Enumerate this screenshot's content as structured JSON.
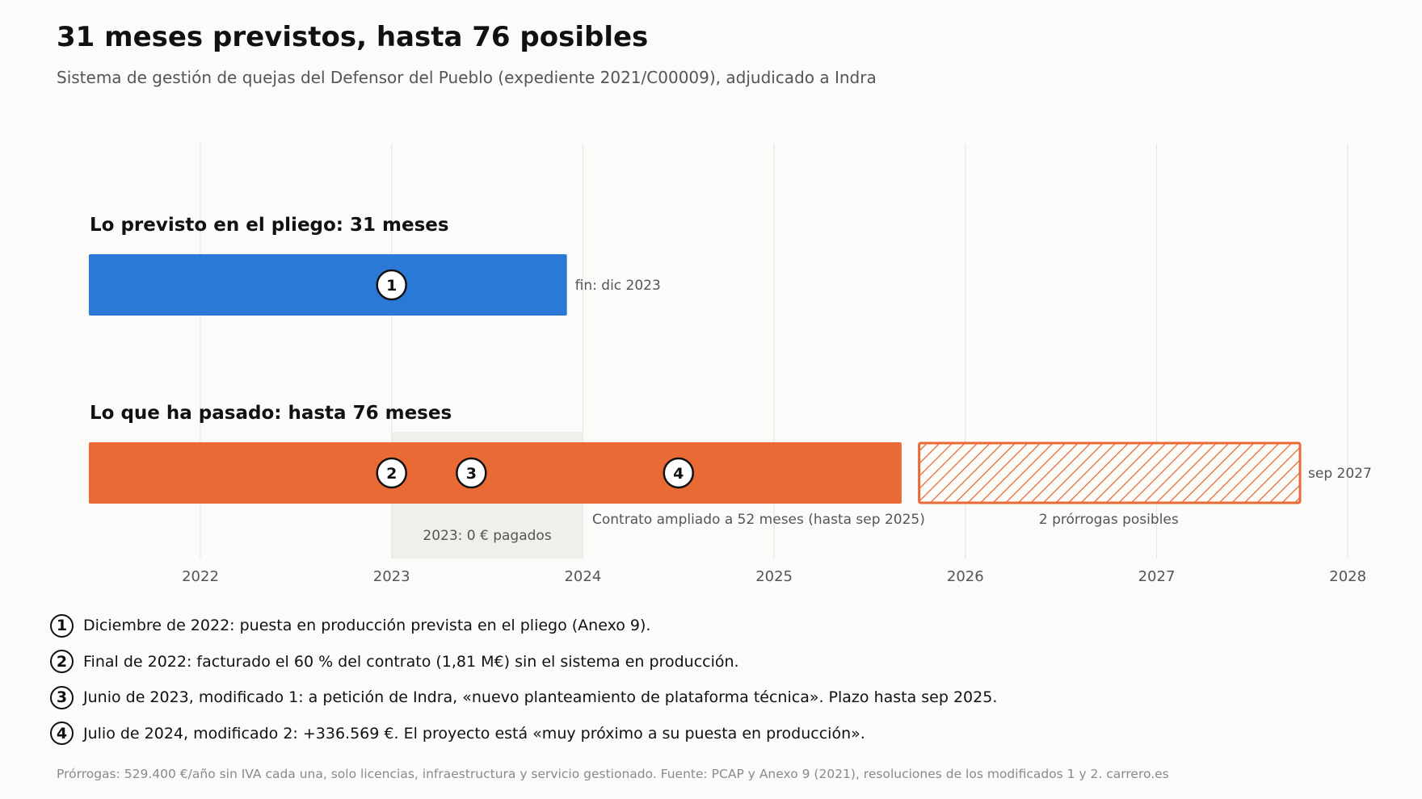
{
  "title": "31 meses previstos, hasta 76 posibles",
  "subtitle": "Sistema de gestión de quejas del Defensor del Pueblo (expediente 2021/C00009), adjudicado a Indra",
  "colors": {
    "planned": "#2b79d6",
    "actual": "#ea6a36",
    "shade": "#f0efec",
    "grid": "#e8e6df",
    "marker_border": "#111111",
    "marker_fill": "#ffffff"
  },
  "chart_data": {
    "type": "timeline",
    "x_ticks": [
      "2022",
      "2023",
      "2024",
      "2025",
      "2026",
      "2027",
      "2028"
    ],
    "xlim": [
      "2021-06",
      "2028-03"
    ],
    "grid": true,
    "rows": [
      {
        "label": "Lo previsto en el pliego: 31 meses",
        "segments": [
          {
            "start": "2021-06",
            "end": "2023-12",
            "style": "solid",
            "color": "#2b79d6"
          }
        ],
        "end_label": "fin: dic 2023",
        "markers": [
          {
            "id": "1",
            "date": "2023-01"
          }
        ]
      },
      {
        "label": "Lo que ha pasado: hasta 76 meses",
        "segments": [
          {
            "start": "2021-06",
            "end": "2025-09",
            "style": "solid",
            "color": "#ea6a36",
            "label": "Contrato ampliado a 52 meses (hasta sep 2025)"
          },
          {
            "start": "2025-10",
            "end": "2027-09",
            "style": "hatched",
            "color": "#ea6a36",
            "label": "2 prórrogas posibles"
          }
        ],
        "end_label": "sep 2027",
        "markers": [
          {
            "id": "2",
            "date": "2023-01"
          },
          {
            "id": "3",
            "date": "2023-06"
          },
          {
            "id": "4",
            "date": "2024-07"
          }
        ]
      }
    ],
    "shaded_period": {
      "start": "2023-01",
      "end": "2024-01",
      "label": "2023: 0 € pagados"
    }
  },
  "notes": [
    {
      "marker": "1",
      "text": "Diciembre de 2022: puesta en producción prevista en el pliego (Anexo 9)."
    },
    {
      "marker": "2",
      "text": "Final de 2022: facturado el 60 % del contrato (1,81 M€) sin el sistema en producción."
    },
    {
      "marker": "3",
      "text": "Junio de 2023, modificado 1: a petición de Indra, «nuevo planteamiento de plataforma técnica». Plazo hasta sep 2025."
    },
    {
      "marker": "4",
      "text": "Julio de 2024, modificado 2: +336.569 €. El proyecto está «muy próximo a su puesta en producción»."
    }
  ],
  "footer": "Prórrogas: 529.400 €/año sin IVA cada una, solo licencias, infraestructura y servicio gestionado.   Fuente: PCAP y Anexo 9 (2021), resoluciones de los modificados 1 y 2.   carrero.es"
}
